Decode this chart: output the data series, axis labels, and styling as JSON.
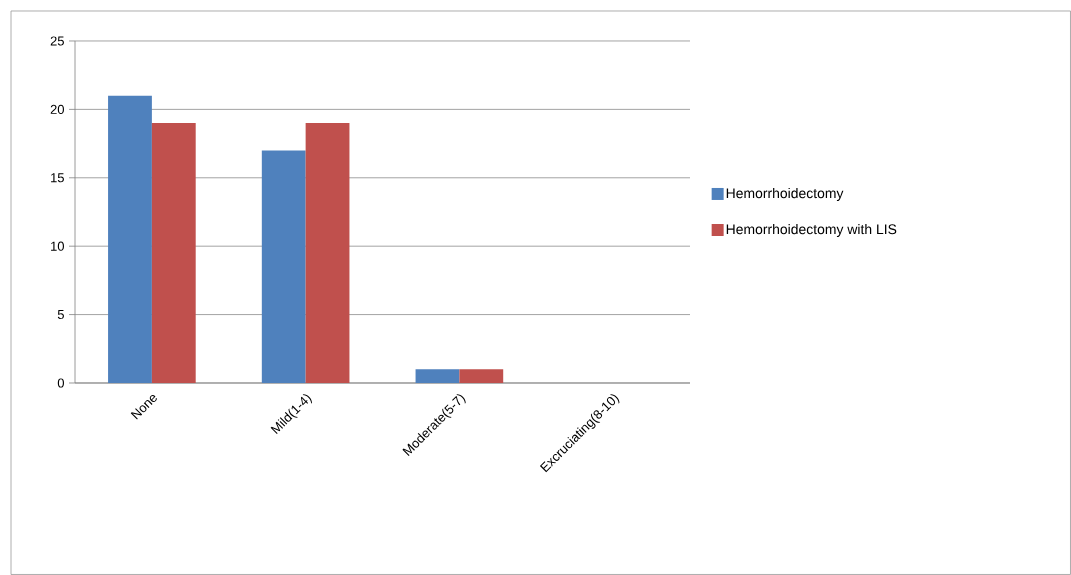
{
  "chart_data": {
    "type": "bar",
    "categories": [
      "None",
      "Mild(1-4)",
      "Moderate(5-7)",
      "Excruciating(8-10)"
    ],
    "series": [
      {
        "name": "Hemorrhoidectomy",
        "color": "#4f81bd",
        "values": [
          21,
          17,
          1,
          0
        ]
      },
      {
        "name": "Hemorrhoidectomy with LIS",
        "color": "#c0504d",
        "values": [
          19,
          19,
          1,
          0
        ]
      }
    ],
    "ylim": [
      0,
      25
    ],
    "yticks": [
      0,
      5,
      10,
      15,
      20,
      25
    ],
    "grid": "y",
    "legend": "right"
  }
}
